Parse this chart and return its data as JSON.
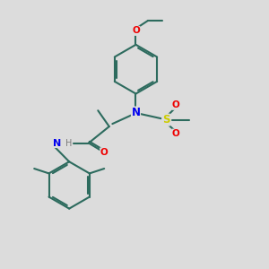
{
  "bg_color": "#dcdcdc",
  "bond_color": "#2d6b5e",
  "N_color": "#0000ee",
  "O_color": "#ee0000",
  "S_color": "#cccc00",
  "H_color": "#7a7a7a",
  "line_width": 1.5,
  "figsize": [
    3.0,
    3.0
  ],
  "dpi": 100,
  "xlim": [
    0,
    10
  ],
  "ylim": [
    0,
    10
  ]
}
